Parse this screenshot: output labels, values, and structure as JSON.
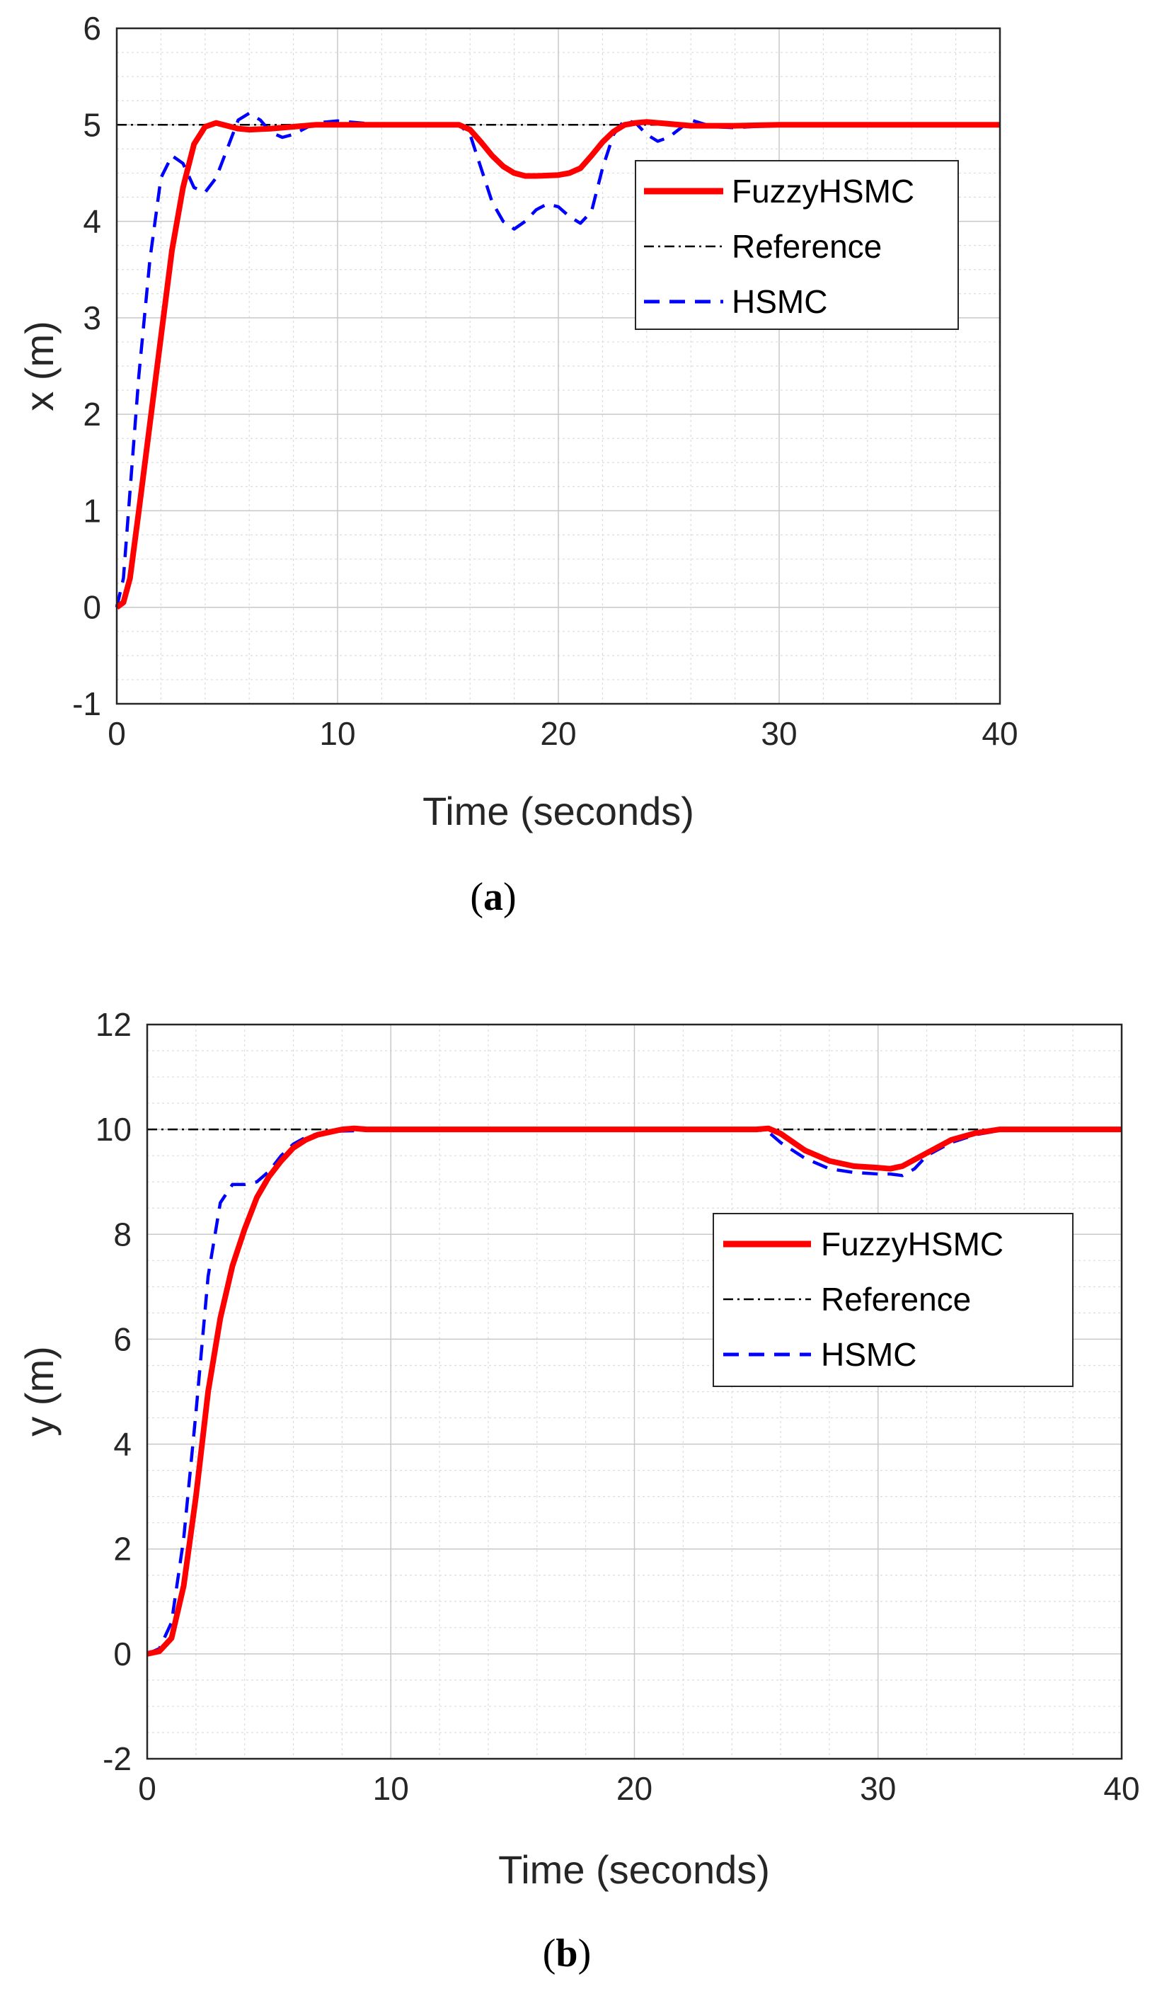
{
  "chart_data": [
    {
      "type": "line",
      "caption_letter": "a",
      "xlabel": "Time (seconds)",
      "ylabel": "x (m)",
      "xlim": [
        0,
        40
      ],
      "ylim": [
        -1,
        6
      ],
      "xticks": [
        0,
        10,
        20,
        30,
        40
      ],
      "yticks": [
        -1,
        0,
        1,
        2,
        3,
        4,
        5,
        6
      ],
      "grid": "on (major and minor)",
      "legend_position": "upper-right",
      "legend": [
        "FuzzyHSMC",
        "Reference",
        "HSMC"
      ],
      "series": [
        {
          "name": "FuzzyHSMC",
          "color": "#ff0000",
          "style": "solid",
          "x": [
            0,
            0.3,
            0.6,
            1,
            1.5,
            2,
            2.5,
            3,
            3.5,
            4,
            4.5,
            5,
            5.5,
            6,
            7,
            8,
            9,
            10,
            12,
            14,
            15.5,
            16,
            16.5,
            17,
            17.5,
            18,
            18.5,
            19,
            20,
            20.5,
            21,
            21.5,
            22,
            22.5,
            23,
            23.5,
            24,
            25,
            26,
            28,
            30,
            35,
            40
          ],
          "values": [
            0,
            0.05,
            0.3,
            1.0,
            1.9,
            2.8,
            3.7,
            4.35,
            4.8,
            4.98,
            5.02,
            4.99,
            4.96,
            4.95,
            4.96,
            4.98,
            5.0,
            5.0,
            5.0,
            5.0,
            5.0,
            4.95,
            4.82,
            4.68,
            4.57,
            4.5,
            4.47,
            4.47,
            4.48,
            4.5,
            4.55,
            4.68,
            4.82,
            4.93,
            5.0,
            5.02,
            5.03,
            5.01,
            4.99,
            4.99,
            5.0,
            5.0,
            5.0
          ]
        },
        {
          "name": "Reference",
          "color": "#000000",
          "style": "dash-dot",
          "x": [
            0,
            40
          ],
          "values": [
            5,
            5
          ]
        },
        {
          "name": "HSMC",
          "color": "#0000ff",
          "style": "dashed",
          "x": [
            0,
            0.3,
            0.6,
            1,
            1.5,
            2,
            2.5,
            3,
            3.5,
            4,
            4.5,
            5,
            5.5,
            6,
            6.5,
            7,
            7.5,
            8,
            9,
            10,
            12,
            14,
            15.5,
            16,
            16.5,
            17,
            17.5,
            18,
            18.5,
            19,
            19.5,
            20,
            20.5,
            21,
            21.5,
            22,
            22.5,
            23,
            23.5,
            24,
            24.5,
            25,
            26,
            27,
            28,
            30,
            35,
            40
          ],
          "values": [
            0,
            0.3,
            1.2,
            2.4,
            3.6,
            4.45,
            4.68,
            4.6,
            4.35,
            4.3,
            4.45,
            4.75,
            5.05,
            5.12,
            5.05,
            4.92,
            4.87,
            4.9,
            5.02,
            5.04,
            5.0,
            5.0,
            5.0,
            4.9,
            4.55,
            4.2,
            4.0,
            3.92,
            4.0,
            4.12,
            4.18,
            4.15,
            4.05,
            3.98,
            4.1,
            4.55,
            4.9,
            5.05,
            5.02,
            4.9,
            4.83,
            4.87,
            5.05,
            4.98,
            4.97,
            5.0,
            5.0,
            5.0
          ]
        }
      ]
    },
    {
      "type": "line",
      "caption_letter": "b",
      "xlabel": "Time (seconds)",
      "ylabel": "y (m)",
      "xlim": [
        0,
        40
      ],
      "ylim": [
        -2,
        12
      ],
      "xticks": [
        0,
        10,
        20,
        30,
        40
      ],
      "yticks": [
        -2,
        0,
        2,
        4,
        6,
        8,
        10,
        12
      ],
      "grid": "on (major and minor)",
      "legend_position": "middle-right",
      "legend": [
        "FuzzyHSMC",
        "Reference",
        "HSMC"
      ],
      "series": [
        {
          "name": "FuzzyHSMC",
          "color": "#ff0000",
          "style": "solid",
          "x": [
            0,
            0.5,
            1,
            1.5,
            2,
            2.5,
            3,
            3.5,
            4,
            4.5,
            5,
            5.5,
            6,
            6.5,
            7,
            7.5,
            8,
            8.5,
            9,
            10,
            15,
            20,
            25,
            25.5,
            26,
            27,
            28,
            29,
            30,
            30.5,
            31,
            32,
            33,
            34,
            35,
            36,
            38,
            40
          ],
          "values": [
            0,
            0.05,
            0.3,
            1.3,
            3.0,
            5.0,
            6.4,
            7.4,
            8.1,
            8.7,
            9.1,
            9.4,
            9.65,
            9.8,
            9.9,
            9.95,
            10.0,
            10.02,
            10.0,
            10.0,
            10.0,
            10.0,
            10.0,
            10.02,
            9.92,
            9.6,
            9.4,
            9.3,
            9.27,
            9.25,
            9.3,
            9.55,
            9.8,
            9.93,
            10.0,
            10.0,
            10.0,
            10.0
          ]
        },
        {
          "name": "Reference",
          "color": "#000000",
          "style": "dash-dot",
          "x": [
            0,
            40
          ],
          "values": [
            10,
            10
          ]
        },
        {
          "name": "HSMC",
          "color": "#0000ff",
          "style": "dashed",
          "x": [
            0,
            0.5,
            1,
            1.5,
            2,
            2.5,
            3,
            3.5,
            4,
            4.5,
            5,
            5.5,
            6,
            6.5,
            7,
            7.5,
            8,
            9,
            10,
            15,
            20,
            25,
            25.5,
            26,
            27,
            28,
            29,
            30,
            30.5,
            31,
            31.5,
            32,
            33,
            34,
            35,
            36,
            38,
            40
          ],
          "values": [
            0,
            0.1,
            0.6,
            2.2,
            4.6,
            7.2,
            8.6,
            8.95,
            8.95,
            9.0,
            9.2,
            9.5,
            9.72,
            9.85,
            9.92,
            9.95,
            9.97,
            9.98,
            10.0,
            10.0,
            10.0,
            10.0,
            9.95,
            9.75,
            9.45,
            9.25,
            9.18,
            9.15,
            9.15,
            9.12,
            9.25,
            9.5,
            9.75,
            9.9,
            9.98,
            10.0,
            10.0,
            10.0
          ]
        }
      ]
    }
  ]
}
